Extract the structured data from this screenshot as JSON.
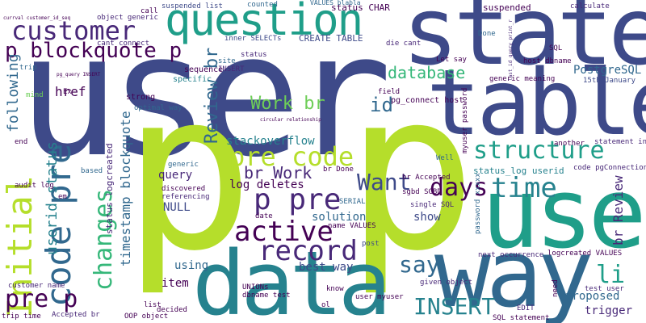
{
  "colors": {
    "background": "#ffffff",
    "purple_dark": "#440154",
    "purple": "#482878",
    "indigo": "#3e4a89",
    "blue": "#31688e",
    "teal_blue": "#26828e",
    "teal": "#1f9e89",
    "green_teal": "#35b779",
    "green": "#6ece58",
    "lime": "#b5de2b",
    "yellow": "#fde725"
  },
  "words": {
    "user": "user",
    "state": "state",
    "table": "table",
    "p1": "p",
    "p2": "p",
    "use": "use",
    "data": "data",
    "way": "way",
    "question": "question",
    "customer": "customer",
    "initial": "Initial",
    "code_pre_left": "code pre",
    "p_blockquote_p": "p blockquote p",
    "pre_code": "pre code",
    "active": "active",
    "record": "record",
    "structure": "structure",
    "time": "time",
    "days": "days",
    "want": "Want",
    "p_pre": "p pre",
    "say": "say",
    "insert_big": "INSERT",
    "li": "li",
    "changes": "changes",
    "pre_p": "pre p",
    "database": "database",
    "review_br_vert": "Review br",
    "work_br": "Work br",
    "id": "id",
    "br_work": "br Work",
    "stackoverflow": "stackoverflow",
    "postgresql": "PostgreSQL",
    "userid_status": "userid status",
    "following": "following",
    "timestamp_blockquote": "timestamp blockquote",
    "br_review_vert": "br Review",
    "log_deletes": "log deletes",
    "solution": "solution",
    "show": "show",
    "best_way": "best way",
    "using": "using",
    "item": "item",
    "query": "query",
    "null": "NULL",
    "href": "href",
    "proposed": "proposed",
    "trigger": "trigger",
    "create_table": "CREATE TABLE",
    "status_char": "status CHAR",
    "suspended_list": "suspended list",
    "suspended": "suspended",
    "counted": "counted",
    "values_blabla": "VALUES blabla",
    "calculate": "calculate",
    "sequence": "sequence",
    "specific": "specific",
    "strong": "strong",
    "optimal_way": "optimal way",
    "inner_selects": "inner SELECTs",
    "insert_small": "INSERT",
    "site": "site",
    "field": "field",
    "die_cant": "die cant",
    "cant_connect": "cant connect",
    "object_generic": "object generic",
    "call": "call",
    "let_say": "Let say",
    "done": "Done",
    "host_dbname": "host dbname",
    "sql_top": "SQL",
    "fifteenth_january": "15th January",
    "generic_meaning": "generic meaning",
    "pg_connect_host": "pg_connect host",
    "myuser_password": "myuser password",
    "another": "another",
    "statement_inner": "statement inner",
    "well": "Well",
    "code_pgconnection": "code pgConnection",
    "status_log_userid": "status_log userid",
    "br_accepted": "br Accepted",
    "sgbd_sgbd": "sgbd SGBD",
    "single_sql": "single SQL",
    "password_xxxxx": "password xxxxx",
    "post": "post",
    "next_occurrence": "next occurrence",
    "logcreated_values": "logcreated VALUES",
    "given_object": "given object",
    "test_user": "test user",
    "need": "need",
    "edit": "EDIT",
    "sql_statement": "SQL statement",
    "know": "know",
    "ol": "ol",
    "user_myuser": "user myuser",
    "name_values": "name VALUES",
    "serial": "SERIAL",
    "date": "date",
    "discovered": "discovered",
    "referencing": "referencing",
    "generic_small": "generic",
    "dbname_test": "dbname test",
    "unions": "UNIONs",
    "oop_object": "OOP object",
    "decided": "decided",
    "list_small": "list",
    "customer_name": "customer name",
    "accepted_br": "Accepted br",
    "trip_time": "trip time",
    "audit_log": "audit log",
    "end": "end",
    "based": "based",
    "trip": "trip",
    "mind": "mind",
    "ex": "Ex",
    "em": "em",
    "status_logcreated": "status logcreated",
    "br_done": "br Done",
    "status_small": "status",
    "customer_id_seq": "currval customer_id_seq",
    "print_r": "last_id_query print_r",
    "circular": "circular relationship",
    "pg_query_insert": "pg_query INSERT"
  }
}
